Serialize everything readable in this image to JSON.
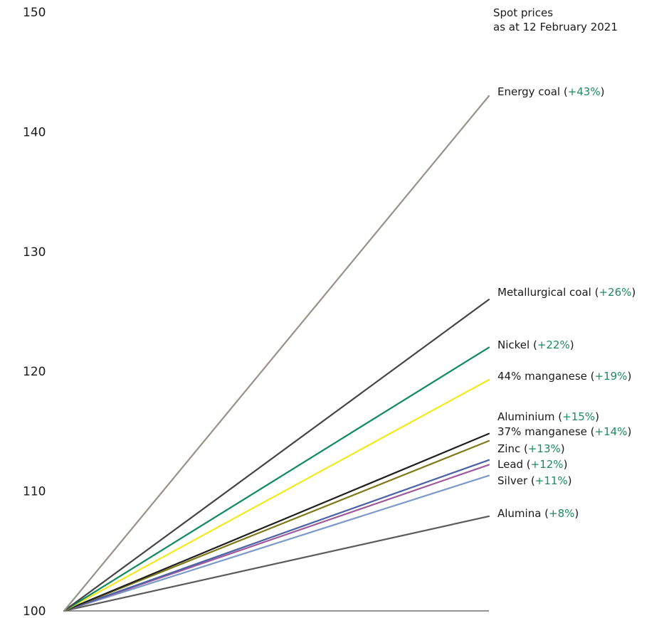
{
  "chart_data": {
    "type": "line",
    "title_line1": "Spot prices",
    "title_line2": "as at 12 February 2021",
    "ylim": [
      100,
      150
    ],
    "yticks": [
      100,
      110,
      120,
      130,
      140,
      150
    ],
    "x": [
      0,
      1
    ],
    "baseline": 100,
    "series": [
      {
        "name": "Energy coal",
        "change": "+43%",
        "values": [
          100,
          143
        ],
        "color": "#9a9189"
      },
      {
        "name": "Metallurgical coal",
        "change": "+26%",
        "values": [
          100,
          126
        ],
        "color": "#444444"
      },
      {
        "name": "Nickel",
        "change": "+22%",
        "values": [
          100,
          122
        ],
        "color": "#0f8a62"
      },
      {
        "name": "44% manganese",
        "change": "+19%",
        "values": [
          100,
          119.3
        ],
        "color": "#f2ea1d"
      },
      {
        "name": "Aluminium",
        "change": "+15%",
        "values": [
          100,
          114.8
        ],
        "color": "#1f1f1f"
      },
      {
        "name": "37% manganese",
        "change": "+14%",
        "values": [
          100,
          114.2
        ],
        "color": "#7f7a18"
      },
      {
        "name": "Zinc",
        "change": "+13%",
        "values": [
          100,
          112.6
        ],
        "color": "#4a63a6"
      },
      {
        "name": "Lead",
        "change": "+12%",
        "values": [
          100,
          112.2
        ],
        "color": "#a05a9c"
      },
      {
        "name": "Silver",
        "change": "+11%",
        "values": [
          100,
          111.3
        ],
        "color": "#7b99c9"
      },
      {
        "name": "Alumina",
        "change": "+8%",
        "values": [
          100,
          107.9
        ],
        "color": "#5a5a5a"
      }
    ]
  }
}
